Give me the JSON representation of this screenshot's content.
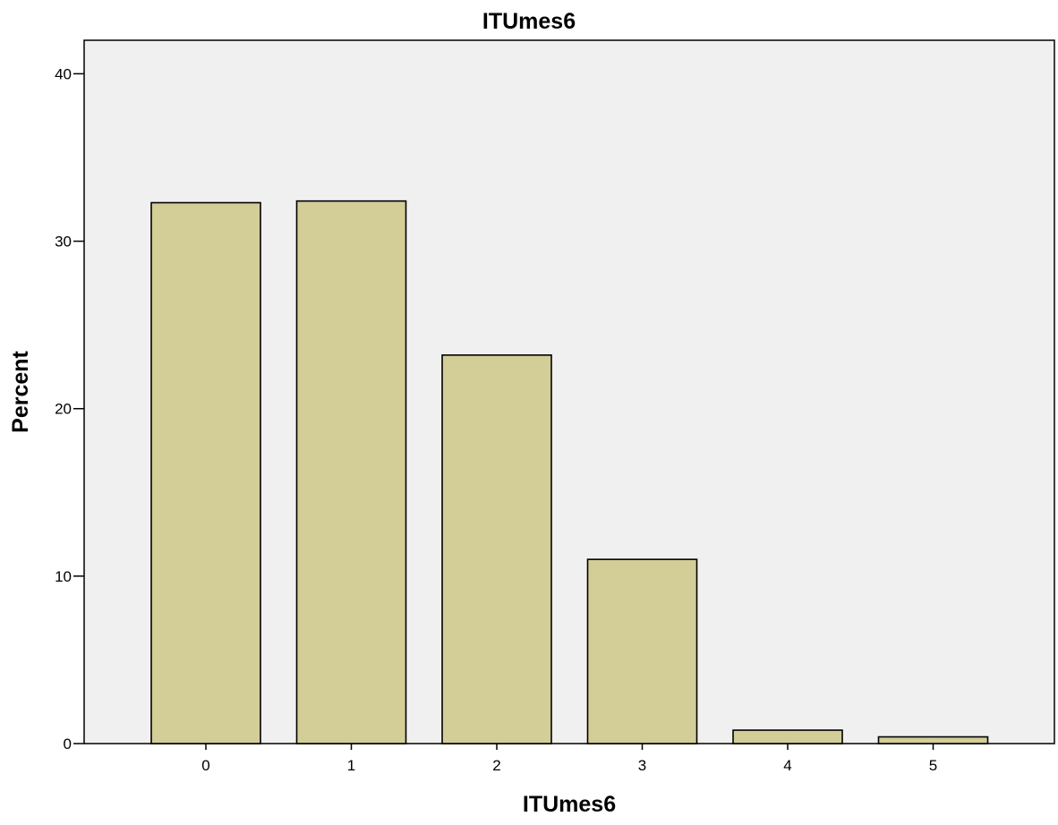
{
  "chart_data": {
    "type": "bar",
    "title": "ITUmes6",
    "xlabel": "ITUmes6",
    "ylabel": "Percent",
    "categories": [
      "0",
      "1",
      "2",
      "3",
      "4",
      "5"
    ],
    "values": [
      32.3,
      32.4,
      23.2,
      11.0,
      0.8,
      0.4
    ],
    "ylim": [
      0,
      42
    ],
    "yticks": [
      "0",
      "10",
      "20",
      "30",
      "40"
    ],
    "grid": false,
    "legend": "none",
    "colors": {
      "bar_fill": "#d3cd98",
      "bar_stroke": "#000000",
      "plot_background": "#f0f0f0"
    }
  }
}
